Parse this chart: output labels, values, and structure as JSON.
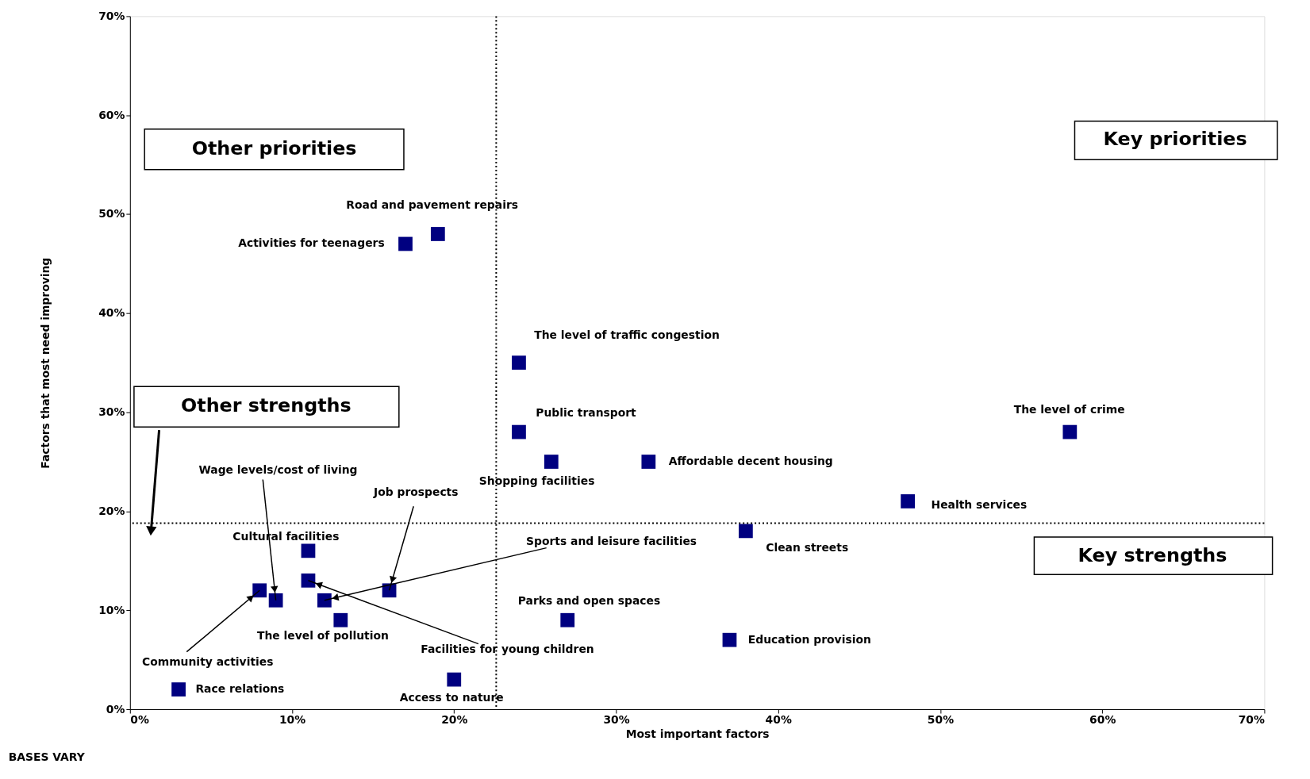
{
  "chart_data": {
    "type": "scatter",
    "xlabel": "Most important factors",
    "ylabel": "Factors that most need improving",
    "xlim": [
      0,
      70
    ],
    "ylim": [
      0,
      70
    ],
    "xticks": [
      {
        "value": 0,
        "label": "0%"
      },
      {
        "value": 10,
        "label": "10%"
      },
      {
        "value": 20,
        "label": "20%"
      },
      {
        "value": 30,
        "label": "30%"
      },
      {
        "value": 40,
        "label": "40%"
      },
      {
        "value": 50,
        "label": "50%"
      },
      {
        "value": 60,
        "label": "60%"
      },
      {
        "value": 70,
        "label": "70%"
      }
    ],
    "yticks": [
      {
        "value": 0,
        "label": "0%"
      },
      {
        "value": 10,
        "label": "10%"
      },
      {
        "value": 20,
        "label": "20%"
      },
      {
        "value": 30,
        "label": "30%"
      },
      {
        "value": 40,
        "label": "40%"
      },
      {
        "value": 50,
        "label": "50%"
      },
      {
        "value": 60,
        "label": "60%"
      },
      {
        "value": 70,
        "label": "70%"
      }
    ],
    "marker": "square",
    "grid": false,
    "series": [
      {
        "color": "#000080",
        "x": [
          19,
          17,
          24,
          24,
          26,
          32,
          58,
          48,
          38,
          11,
          9,
          16,
          12,
          13,
          11,
          8,
          3,
          20,
          27,
          37
        ],
        "values": [
          48,
          47,
          35,
          28,
          25,
          25,
          28,
          21,
          18,
          16,
          11,
          12,
          11,
          9,
          13,
          12,
          2,
          3,
          9,
          7
        ]
      }
    ],
    "ref_lines": [
      {
        "axis": "x",
        "value": 22.6,
        "line_style": "dotted",
        "color": "#000000"
      },
      {
        "axis": "y",
        "value": 18.8,
        "line_style": "dotted",
        "color": "#000000"
      }
    ],
    "annotations": [
      {
        "text": "Road and pavement repairs",
        "x": 19,
        "y": 48
      },
      {
        "text": "Activities for teenagers",
        "x": 17,
        "y": 47
      },
      {
        "text": "The level of traffic congestion",
        "x": 24,
        "y": 35
      },
      {
        "text": "Public transport",
        "x": 24,
        "y": 28
      },
      {
        "text": "Shopping facilities",
        "x": 26,
        "y": 25
      },
      {
        "text": "Affordable decent housing",
        "x": 32,
        "y": 25
      },
      {
        "text": "The level of crime",
        "x": 58,
        "y": 28
      },
      {
        "text": "Health services",
        "x": 48,
        "y": 21
      },
      {
        "text": "Clean streets",
        "x": 38,
        "y": 18
      },
      {
        "text": "Cultural facilities",
        "x": 11,
        "y": 16
      },
      {
        "text": "Wage levels/cost of living",
        "x": 9,
        "y": 11
      },
      {
        "text": "Job prospects",
        "x": 16,
        "y": 12
      },
      {
        "text": "Sports and leisure facilities",
        "x": 12,
        "y": 11
      },
      {
        "text": "The level of pollution",
        "x": 13,
        "y": 9
      },
      {
        "text": "Facilities for young children",
        "x": 11,
        "y": 13
      },
      {
        "text": "Community activities",
        "x": 8,
        "y": 12
      },
      {
        "text": "Race relations",
        "x": 3,
        "y": 2
      },
      {
        "text": "Access to nature",
        "x": 20,
        "y": 3
      },
      {
        "text": "Parks and open spaces",
        "x": 27,
        "y": 9
      },
      {
        "text": "Education provision",
        "x": 37,
        "y": 7
      },
      "Other priorities",
      "Key priorities",
      "Other strengths",
      "Key strengths",
      "BASES VARY"
    ]
  }
}
